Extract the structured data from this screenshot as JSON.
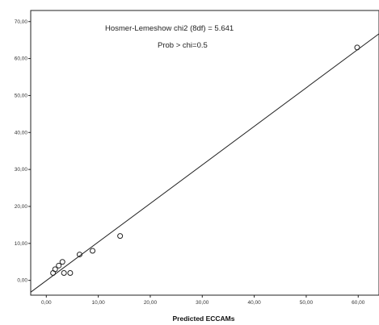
{
  "chart_data": {
    "type": "scatter",
    "title": "",
    "xlabel": "Predicted ECCAMs",
    "ylabel": "",
    "xlim": [
      -3,
      64
    ],
    "ylim": [
      -4,
      73
    ],
    "grid": false,
    "x_ticks": [
      0,
      10,
      20,
      30,
      40,
      50,
      60
    ],
    "x_tick_labels": [
      "0,00",
      "10,00",
      "20,00",
      "30,00",
      "40,00",
      "50,00",
      "60,00"
    ],
    "y_ticks": [
      0,
      10,
      20,
      30,
      40,
      50,
      60,
      70
    ],
    "y_tick_labels": [
      "0,00",
      "10,00",
      "20,00",
      "30,00",
      "40,00",
      "50,00",
      "60,00",
      "70,00"
    ],
    "annotations": [
      "Hosmer-Lemeshow chi2 (8df) = 5.641",
      "Prob > chi=0.5"
    ],
    "series": [
      {
        "points": [
          {
            "x": 1.3,
            "y": 2.0
          },
          {
            "x": 1.7,
            "y": 3.0
          },
          {
            "x": 2.4,
            "y": 4.0
          },
          {
            "x": 3.1,
            "y": 5.0
          },
          {
            "x": 3.4,
            "y": 2.0
          },
          {
            "x": 4.6,
            "y": 2.0
          },
          {
            "x": 6.4,
            "y": 7.0
          },
          {
            "x": 8.9,
            "y": 8.0
          },
          {
            "x": 14.2,
            "y": 12.0
          },
          {
            "x": 59.8,
            "y": 63.0
          }
        ]
      }
    ],
    "reference_line": {
      "from": [
        -3,
        -3.2
      ],
      "to": [
        64,
        66.7
      ]
    }
  }
}
